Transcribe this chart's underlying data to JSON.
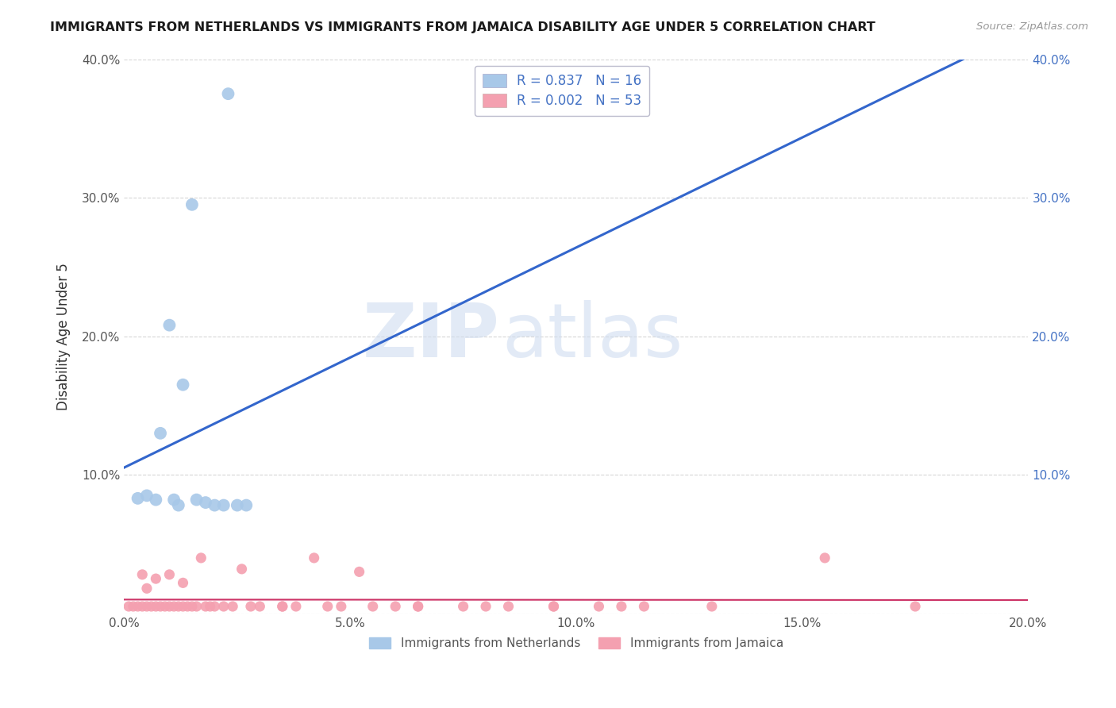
{
  "title": "IMMIGRANTS FROM NETHERLANDS VS IMMIGRANTS FROM JAMAICA DISABILITY AGE UNDER 5 CORRELATION CHART",
  "source": "Source: ZipAtlas.com",
  "ylabel": "Disability Age Under 5",
  "xlabel": "",
  "xlim": [
    0.0,
    0.2
  ],
  "ylim": [
    0.0,
    0.4
  ],
  "xticks": [
    0.0,
    0.05,
    0.1,
    0.15,
    0.2
  ],
  "yticks": [
    0.0,
    0.1,
    0.2,
    0.3,
    0.4
  ],
  "xtick_labels": [
    "0.0%",
    "5.0%",
    "10.0%",
    "15.0%",
    "20.0%"
  ],
  "ytick_labels": [
    "",
    "10.0%",
    "20.0%",
    "30.0%",
    "40.0%"
  ],
  "right_ytick_labels": [
    "",
    "10.0%",
    "20.0%",
    "30.0%",
    "40.0%"
  ],
  "netherlands_color": "#a8c8e8",
  "jamaica_color": "#f4a0b0",
  "trend_netherlands_color": "#3366cc",
  "trend_jamaica_color": "#cc3366",
  "R_netherlands": 0.837,
  "N_netherlands": 16,
  "R_jamaica": 0.002,
  "N_jamaica": 53,
  "watermark_zip": "ZIP",
  "watermark_atlas": "atlas",
  "background_color": "#ffffff",
  "grid_color": "#cccccc",
  "legend_edge_color": "#aaaacc"
}
